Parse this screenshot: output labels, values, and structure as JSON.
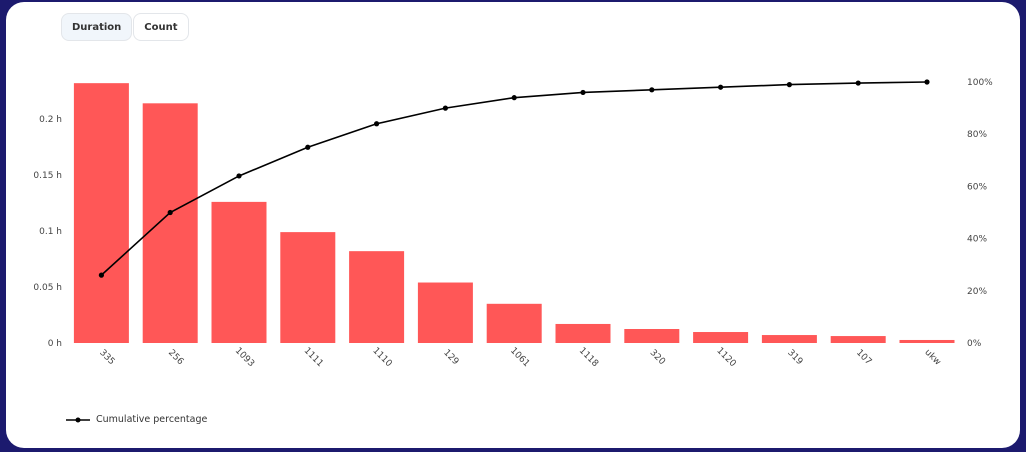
{
  "tabs": [
    {
      "label": "Duration",
      "active": true
    },
    {
      "label": "Count",
      "active": false
    }
  ],
  "chart_data": {
    "type": "bar+line",
    "categories": [
      "335",
      "256",
      "1093",
      "1111",
      "1110",
      "129",
      "1061",
      "1118",
      "320",
      "1120",
      "319",
      "107",
      "ukw"
    ],
    "series": [
      {
        "type": "bar",
        "axis": "left",
        "color": "#ff5757",
        "values": [
          0.232,
          0.214,
          0.126,
          0.099,
          0.082,
          0.054,
          0.035,
          0.017,
          0.0125,
          0.0098,
          0.0071,
          0.0062,
          0.0027
        ]
      },
      {
        "type": "line",
        "axis": "right",
        "name": "Cumulative percentage",
        "color": "#000000",
        "values": [
          26,
          50,
          64,
          75,
          84,
          90,
          94,
          96,
          97,
          98,
          99,
          99.6,
          100
        ]
      }
    ],
    "y_left": {
      "ticks": [
        0,
        0.05,
        0.1,
        0.15,
        0.2
      ],
      "tick_labels": [
        "0 h",
        "0.05 h",
        "0.1 h",
        "0.15 h",
        "0.2 h"
      ],
      "range": [
        0,
        0.2325
      ]
    },
    "y_right": {
      "ticks": [
        0,
        20,
        40,
        60,
        80,
        100
      ],
      "tick_labels": [
        "0%",
        "20%",
        "40%",
        "60%",
        "80%",
        "100%"
      ],
      "range": [
        0,
        100
      ]
    },
    "grid": false,
    "legend": "bottom-left"
  }
}
